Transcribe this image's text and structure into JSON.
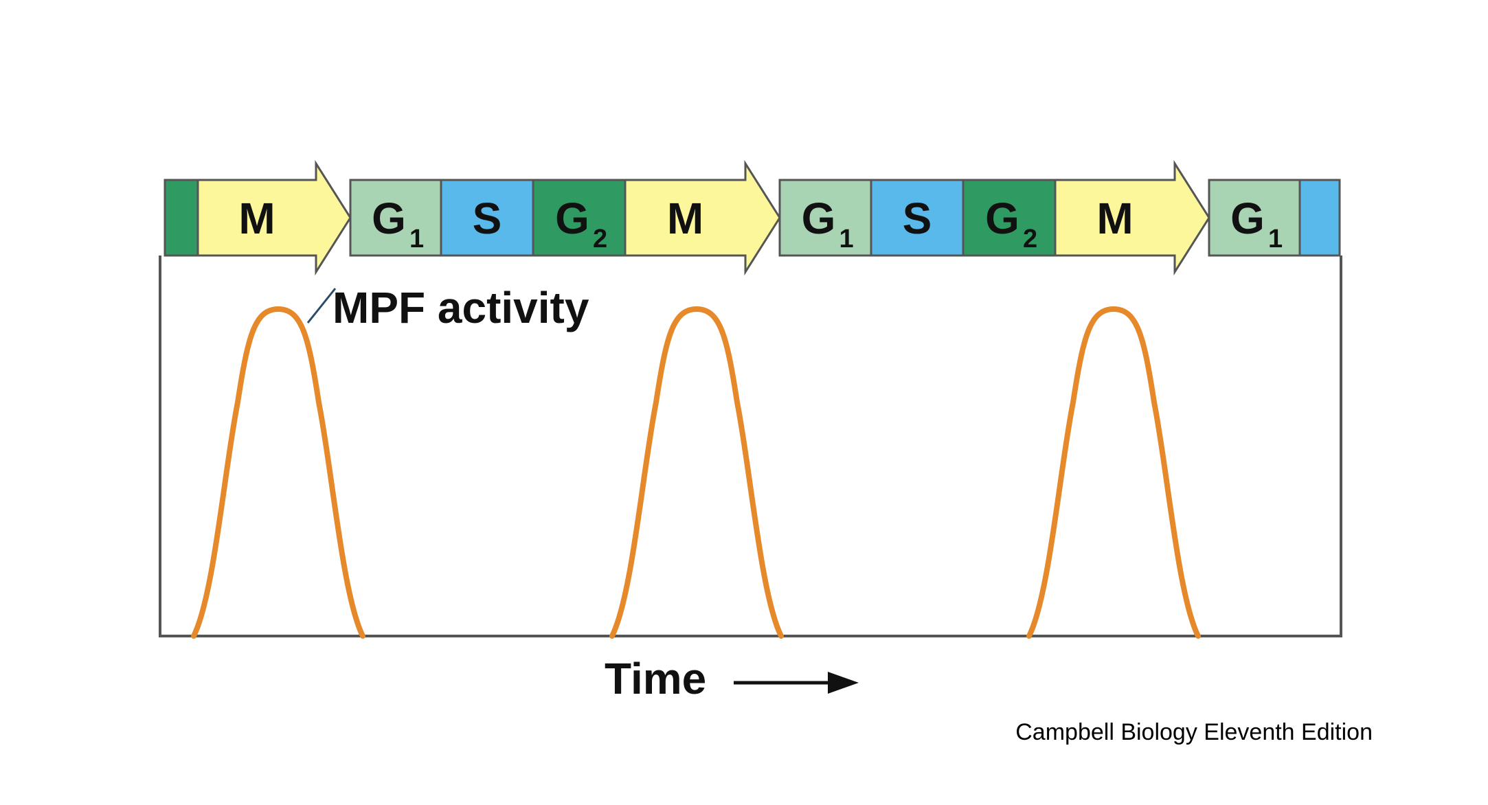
{
  "colors": {
    "M": "#fbf79a",
    "G1": "#a9d4b3",
    "S": "#5ab9eb",
    "G2": "#2f9b62",
    "curve": "#e6892a",
    "frame": "#555555"
  },
  "phases": [
    {
      "phase": "G2",
      "label": ""
    },
    {
      "phase": "M",
      "label": "M"
    },
    {
      "phase": "G1",
      "label": "G",
      "sub": "1"
    },
    {
      "phase": "S",
      "label": "S"
    },
    {
      "phase": "G2",
      "label": "G",
      "sub": "2"
    },
    {
      "phase": "M",
      "label": "M"
    },
    {
      "phase": "G1",
      "label": "G",
      "sub": "1"
    },
    {
      "phase": "S",
      "label": "S"
    },
    {
      "phase": "G2",
      "label": "G",
      "sub": "2"
    },
    {
      "phase": "M",
      "label": "M"
    },
    {
      "phase": "G1",
      "label": "G",
      "sub": "1"
    },
    {
      "phase": "S",
      "label": ""
    }
  ],
  "curve_label": "MPF activity",
  "axis_label": "Time",
  "credit": "Campbell Biology Eleventh Edition"
}
